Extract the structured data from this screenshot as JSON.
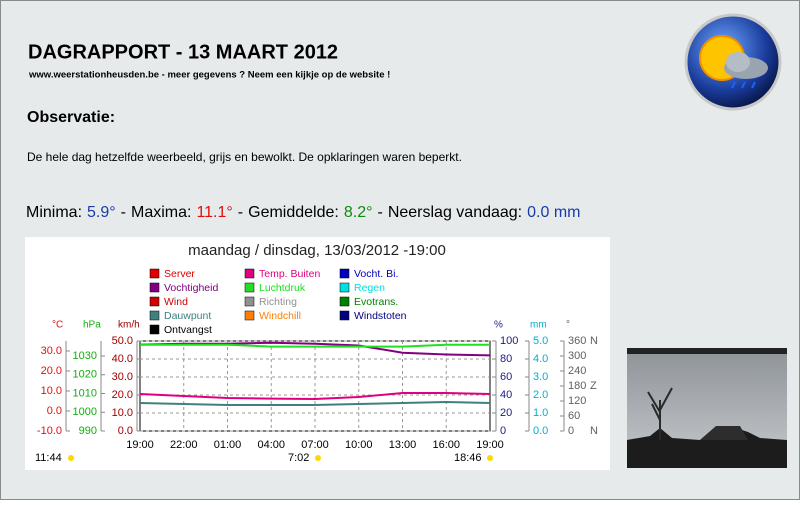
{
  "header": {
    "title": "DAGRAPPORT - 13 MAART 2012",
    "subtitle": "www.weerstationheusden.be - meer gegevens ? Neem een kijkje op de website !"
  },
  "observation": {
    "heading": "Observatie:",
    "text": "De hele dag hetzelfde weerbeeld, grijs en bewolkt. De opklaringen waren beperkt."
  },
  "summary": {
    "separator": "-",
    "items": [
      {
        "label": "Minima:",
        "value": "5.9°",
        "color": "#1a3aa8"
      },
      {
        "label": "Maxima:",
        "value": "11.1°",
        "color": "#e01010"
      },
      {
        "label": "Gemiddelde:",
        "value": "8.2°",
        "color": "#108a10"
      },
      {
        "label": "Neerslag vandaag:",
        "value": "0.0 mm",
        "color": "#1a3aa8"
      }
    ]
  },
  "chart_data": {
    "type": "line",
    "title": "maandag / dinsdag, 13/03/2012 -19:00",
    "categories": [
      "19:00",
      "22:00",
      "01:00",
      "04:00",
      "07:00",
      "10:00",
      "13:00",
      "16:00",
      "19:00"
    ],
    "grid": true,
    "axes": [
      {
        "label": "°C",
        "color": "#e01010",
        "side": "left",
        "lim": [
          -10,
          35
        ],
        "ticks": [
          {
            "value": -10,
            "label": "-10.0"
          },
          {
            "value": 0,
            "label": "0.0"
          },
          {
            "value": 10,
            "label": "10.0"
          },
          {
            "value": 20,
            "label": "20.0"
          },
          {
            "value": 30,
            "label": "30.0"
          }
        ]
      },
      {
        "label": "hPa",
        "color": "#10b010",
        "side": "left",
        "lim": [
          990,
          1038
        ],
        "ticks": [
          990,
          1000,
          1010,
          1020,
          1030
        ]
      },
      {
        "label": "km/h",
        "color": "#a00000",
        "side": "left",
        "lim": [
          0,
          50
        ],
        "ticks": [
          {
            "value": 0,
            "label": "0.0"
          },
          {
            "value": 10,
            "label": "10.0"
          },
          {
            "value": 20,
            "label": "20.0"
          },
          {
            "value": 30,
            "label": "30.0"
          },
          {
            "value": 40,
            "label": "40.0"
          },
          {
            "value": 50,
            "label": "50.0"
          }
        ]
      },
      {
        "label": "%",
        "color": "#1a1a8a",
        "side": "right",
        "lim": [
          0,
          100
        ],
        "ticks": [
          0,
          20,
          40,
          60,
          80,
          100
        ]
      },
      {
        "label": "mm",
        "color": "#00b0d0",
        "side": "right",
        "lim": [
          0,
          5
        ],
        "ticks": [
          {
            "value": 0,
            "label": "0.0"
          },
          {
            "value": 1,
            "label": "1.0"
          },
          {
            "value": 2,
            "label": "2.0"
          },
          {
            "value": 3,
            "label": "3.0"
          },
          {
            "value": 4,
            "label": "4.0"
          },
          {
            "value": 5,
            "label": "5.0"
          }
        ]
      },
      {
        "label": "°",
        "color": "#606060",
        "side": "right",
        "lim": [
          0,
          360
        ],
        "ticks": [
          0,
          60,
          120,
          180,
          240,
          300,
          360
        ],
        "compass": [
          {
            "value": 0,
            "label": "N"
          },
          {
            "value": 180,
            "label": "Z"
          },
          {
            "value": 360,
            "label": "N"
          }
        ]
      }
    ],
    "legend": [
      {
        "name": "Server",
        "color": "#e00000"
      },
      {
        "name": "Vochtigheid",
        "color": "#800080"
      },
      {
        "name": "Wind",
        "color": "#d00000"
      },
      {
        "name": "Dauwpunt",
        "color": "#408080"
      },
      {
        "name": "Ontvangst",
        "color": "#000000"
      },
      {
        "name": "Temp. Buiten",
        "color": "#e0007f"
      },
      {
        "name": "Luchtdruk",
        "color": "#20e020"
      },
      {
        "name": "Richting",
        "color": "#909090"
      },
      {
        "name": "Windchill",
        "color": "#ff8000"
      },
      {
        "name": "Vocht. Bi.",
        "color": "#0000c0"
      },
      {
        "name": "Regen",
        "color": "#00e0e0"
      },
      {
        "name": "Evotrans.",
        "color": "#008000"
      },
      {
        "name": "Windstoten",
        "color": "#000080"
      }
    ],
    "series": [
      {
        "name": "Temp. Buiten",
        "color": "#e0007f",
        "axis": 0,
        "values": [
          8.5,
          7.5,
          6.5,
          6.2,
          6.0,
          7.0,
          9.0,
          9.0,
          8.5
        ]
      },
      {
        "name": "Dauwpunt",
        "color": "#408080",
        "axis": 0,
        "values": [
          4.0,
          3.5,
          3.0,
          3.0,
          3.0,
          3.5,
          4.0,
          4.5,
          4.0
        ]
      },
      {
        "name": "Vochtigheid",
        "color": "#800080",
        "axis": 3,
        "values": [
          96,
          97,
          97,
          98,
          97,
          95,
          87,
          85,
          84
        ]
      },
      {
        "name": "Luchtdruk",
        "color": "#20e020",
        "axis": 1,
        "values": [
          1036,
          1036,
          1036,
          1035,
          1035,
          1035,
          1035,
          1036,
          1036
        ]
      }
    ],
    "sun": [
      "11:44",
      "7:02",
      "18:46"
    ]
  }
}
